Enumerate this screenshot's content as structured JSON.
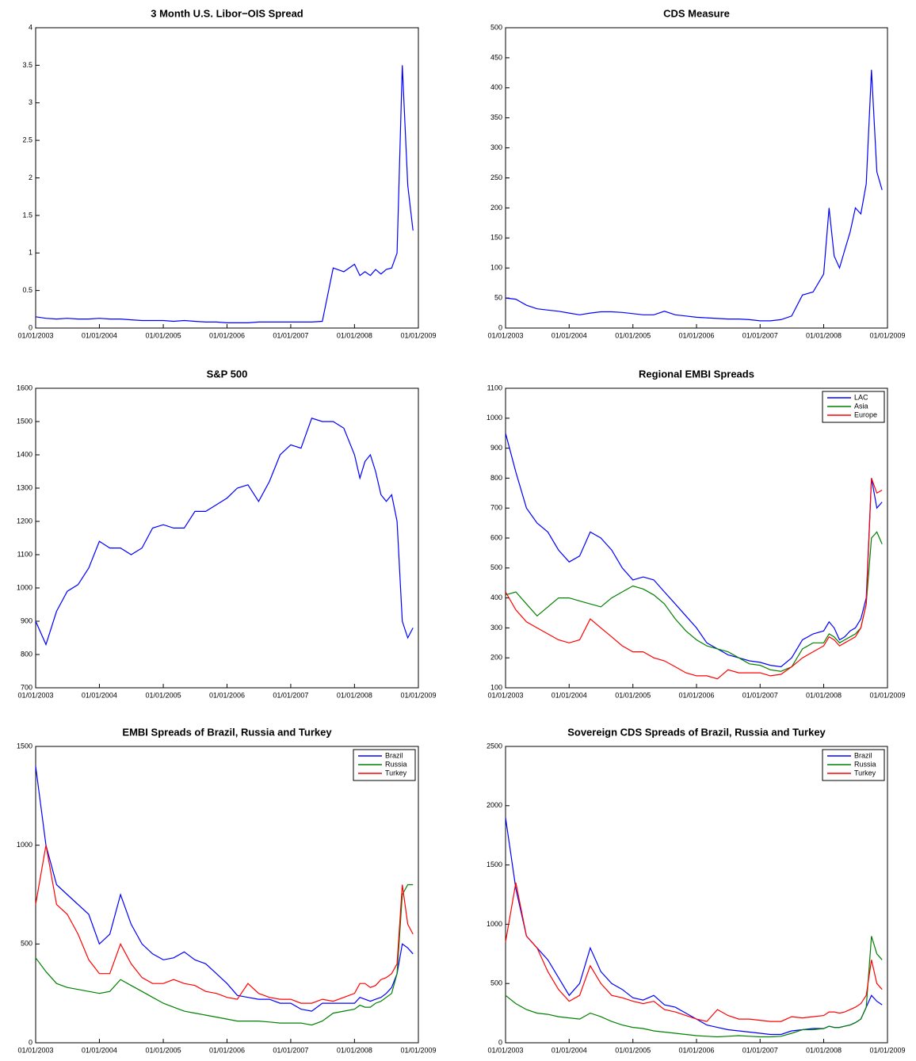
{
  "chart_data": [
    {
      "type": "line",
      "title": "3 Month U.S. Libor−OIS Spread",
      "x": [
        "01/01/2003",
        "03/01/2003",
        "05/01/2003",
        "07/01/2003",
        "09/01/2003",
        "11/01/2003",
        "01/01/2004",
        "03/01/2004",
        "05/01/2004",
        "07/01/2004",
        "09/01/2004",
        "11/01/2004",
        "01/01/2005",
        "03/01/2005",
        "05/01/2005",
        "07/01/2005",
        "09/01/2005",
        "11/01/2005",
        "01/01/2006",
        "03/01/2006",
        "05/01/2006",
        "07/01/2006",
        "09/01/2006",
        "11/01/2006",
        "01/01/2007",
        "03/01/2007",
        "05/01/2007",
        "07/01/2007",
        "09/01/2007",
        "11/01/2007",
        "01/01/2008",
        "02/01/2008",
        "03/01/2008",
        "04/01/2008",
        "05/01/2008",
        "06/01/2008",
        "07/01/2008",
        "08/01/2008",
        "09/01/2008",
        "10/01/2008",
        "11/01/2008",
        "12/01/2008"
      ],
      "values": [
        0.15,
        0.13,
        0.12,
        0.13,
        0.12,
        0.12,
        0.13,
        0.12,
        0.12,
        0.11,
        0.1,
        0.1,
        0.1,
        0.09,
        0.1,
        0.09,
        0.08,
        0.08,
        0.07,
        0.07,
        0.07,
        0.08,
        0.08,
        0.08,
        0.08,
        0.08,
        0.08,
        0.09,
        0.8,
        0.75,
        0.85,
        0.7,
        0.75,
        0.7,
        0.78,
        0.72,
        0.78,
        0.8,
        1.0,
        3.5,
        1.9,
        1.3
      ],
      "color": "#0000ff",
      "xlim": [
        "01/01/2003",
        "01/01/2009"
      ],
      "xticks": [
        "01/01/2003",
        "01/01/2004",
        "01/01/2005",
        "01/01/2006",
        "01/01/2007",
        "01/01/2008",
        "01/01/2009"
      ],
      "ylim": [
        0,
        4
      ],
      "yticks": [
        0,
        0.5,
        1,
        1.5,
        2,
        2.5,
        3,
        3.5,
        4
      ]
    },
    {
      "type": "line",
      "title": "CDS Measure",
      "x": [
        "01/01/2003",
        "03/01/2003",
        "05/01/2003",
        "07/01/2003",
        "09/01/2003",
        "11/01/2003",
        "01/01/2004",
        "03/01/2004",
        "05/01/2004",
        "07/01/2004",
        "09/01/2004",
        "11/01/2004",
        "01/01/2005",
        "03/01/2005",
        "05/01/2005",
        "07/01/2005",
        "09/01/2005",
        "11/01/2005",
        "01/01/2006",
        "03/01/2006",
        "05/01/2006",
        "07/01/2006",
        "09/01/2006",
        "11/01/2006",
        "01/01/2007",
        "03/01/2007",
        "05/01/2007",
        "07/01/2007",
        "09/01/2007",
        "11/01/2007",
        "01/01/2008",
        "02/01/2008",
        "03/01/2008",
        "04/01/2008",
        "05/01/2008",
        "06/01/2008",
        "07/01/2008",
        "08/01/2008",
        "09/01/2008",
        "10/01/2008",
        "11/01/2008",
        "12/01/2008"
      ],
      "values": [
        50,
        48,
        38,
        32,
        30,
        28,
        25,
        22,
        25,
        27,
        27,
        26,
        24,
        22,
        22,
        28,
        22,
        20,
        18,
        17,
        16,
        15,
        15,
        14,
        12,
        12,
        14,
        20,
        55,
        60,
        90,
        200,
        120,
        100,
        130,
        160,
        200,
        190,
        240,
        430,
        260,
        230
      ],
      "color": "#0000ff",
      "xlim": [
        "01/01/2003",
        "01/01/2009"
      ],
      "xticks": [
        "01/01/2003",
        "01/01/2004",
        "01/01/2005",
        "01/01/2006",
        "01/01/2007",
        "01/01/2008",
        "01/01/2009"
      ],
      "ylim": [
        0,
        500
      ],
      "yticks": [
        0,
        50,
        100,
        150,
        200,
        250,
        300,
        350,
        400,
        450,
        500
      ]
    },
    {
      "type": "line",
      "title": "S&P 500",
      "x": [
        "01/01/2003",
        "03/01/2003",
        "05/01/2003",
        "07/01/2003",
        "09/01/2003",
        "11/01/2003",
        "01/01/2004",
        "03/01/2004",
        "05/01/2004",
        "07/01/2004",
        "09/01/2004",
        "11/01/2004",
        "01/01/2005",
        "03/01/2005",
        "05/01/2005",
        "07/01/2005",
        "09/01/2005",
        "11/01/2005",
        "01/01/2006",
        "03/01/2006",
        "05/01/2006",
        "07/01/2006",
        "09/01/2006",
        "11/01/2006",
        "01/01/2007",
        "03/01/2007",
        "05/01/2007",
        "07/01/2007",
        "09/01/2007",
        "11/01/2007",
        "01/01/2008",
        "02/01/2008",
        "03/01/2008",
        "04/01/2008",
        "05/01/2008",
        "06/01/2008",
        "07/01/2008",
        "08/01/2008",
        "09/01/2008",
        "10/01/2008",
        "11/01/2008",
        "12/01/2008"
      ],
      "values": [
        900,
        830,
        930,
        990,
        1010,
        1060,
        1140,
        1120,
        1120,
        1100,
        1120,
        1180,
        1190,
        1180,
        1180,
        1230,
        1230,
        1250,
        1270,
        1300,
        1310,
        1260,
        1320,
        1400,
        1430,
        1420,
        1510,
        1500,
        1500,
        1480,
        1400,
        1330,
        1380,
        1400,
        1350,
        1280,
        1260,
        1280,
        1200,
        900,
        850,
        880
      ],
      "color": "#0000ff",
      "xlim": [
        "01/01/2003",
        "01/01/2009"
      ],
      "xticks": [
        "01/01/2003",
        "01/01/2004",
        "01/01/2005",
        "01/01/2006",
        "01/01/2007",
        "01/01/2008",
        "01/01/2009"
      ],
      "ylim": [
        700,
        1600
      ],
      "yticks": [
        700,
        800,
        900,
        1000,
        1100,
        1200,
        1300,
        1400,
        1500,
        1600
      ]
    },
    {
      "type": "line",
      "title": "Regional EMBI Spreads",
      "x": [
        "01/01/2003",
        "03/01/2003",
        "05/01/2003",
        "07/01/2003",
        "09/01/2003",
        "11/01/2003",
        "01/01/2004",
        "03/01/2004",
        "05/01/2004",
        "07/01/2004",
        "09/01/2004",
        "11/01/2004",
        "01/01/2005",
        "03/01/2005",
        "05/01/2005",
        "07/01/2005",
        "09/01/2005",
        "11/01/2005",
        "01/01/2006",
        "03/01/2006",
        "05/01/2006",
        "07/01/2006",
        "09/01/2006",
        "11/01/2006",
        "01/01/2007",
        "03/01/2007",
        "05/01/2007",
        "07/01/2007",
        "09/01/2007",
        "11/01/2007",
        "01/01/2008",
        "02/01/2008",
        "03/01/2008",
        "04/01/2008",
        "05/01/2008",
        "06/01/2008",
        "07/01/2008",
        "08/01/2008",
        "09/01/2008",
        "10/01/2008",
        "11/01/2008",
        "12/01/2008"
      ],
      "series": [
        {
          "name": "LAC",
          "color": "#0000ff",
          "values": [
            950,
            820,
            700,
            650,
            620,
            560,
            520,
            540,
            620,
            600,
            560,
            500,
            460,
            470,
            460,
            420,
            380,
            340,
            300,
            250,
            230,
            210,
            200,
            190,
            185,
            175,
            170,
            200,
            260,
            280,
            290,
            320,
            300,
            260,
            270,
            290,
            300,
            330,
            400,
            800,
            700,
            720
          ]
        },
        {
          "name": "Asia",
          "color": "#008000",
          "values": [
            410,
            420,
            380,
            340,
            370,
            400,
            400,
            390,
            380,
            370,
            400,
            420,
            440,
            430,
            410,
            380,
            330,
            290,
            260,
            240,
            230,
            220,
            200,
            180,
            175,
            160,
            155,
            170,
            230,
            250,
            250,
            280,
            270,
            250,
            260,
            270,
            280,
            300,
            380,
            600,
            620,
            580
          ]
        },
        {
          "name": "Europe",
          "color": "#ff0000",
          "values": [
            420,
            360,
            320,
            300,
            280,
            260,
            250,
            260,
            330,
            300,
            270,
            240,
            220,
            220,
            200,
            190,
            170,
            150,
            140,
            140,
            130,
            160,
            150,
            150,
            150,
            140,
            145,
            170,
            200,
            220,
            240,
            270,
            260,
            240,
            250,
            260,
            270,
            300,
            380,
            800,
            750,
            760
          ]
        }
      ],
      "legend": "upper right",
      "xlim": [
        "01/01/2003",
        "01/01/2009"
      ],
      "xticks": [
        "01/01/2003",
        "01/01/2004",
        "01/01/2005",
        "01/01/2006",
        "01/01/2007",
        "01/01/2008",
        "01/01/2009"
      ],
      "ylim": [
        100,
        1100
      ],
      "yticks": [
        100,
        200,
        300,
        400,
        500,
        600,
        700,
        800,
        900,
        1000,
        1100
      ]
    },
    {
      "type": "line",
      "title": "EMBI Spreads of Brazil, Russia and Turkey",
      "x": [
        "01/01/2003",
        "03/01/2003",
        "05/01/2003",
        "07/01/2003",
        "09/01/2003",
        "11/01/2003",
        "01/01/2004",
        "03/01/2004",
        "05/01/2004",
        "07/01/2004",
        "09/01/2004",
        "11/01/2004",
        "01/01/2005",
        "03/01/2005",
        "05/01/2005",
        "07/01/2005",
        "09/01/2005",
        "11/01/2005",
        "01/01/2006",
        "03/01/2006",
        "05/01/2006",
        "07/01/2006",
        "09/01/2006",
        "11/01/2006",
        "01/01/2007",
        "03/01/2007",
        "05/01/2007",
        "07/01/2007",
        "09/01/2007",
        "11/01/2007",
        "01/01/2008",
        "02/01/2008",
        "03/01/2008",
        "04/01/2008",
        "05/01/2008",
        "06/01/2008",
        "07/01/2008",
        "08/01/2008",
        "09/01/2008",
        "10/01/2008",
        "11/01/2008",
        "12/01/2008"
      ],
      "series": [
        {
          "name": "Brazil",
          "color": "#0000ff",
          "values": [
            1400,
            1000,
            800,
            750,
            700,
            650,
            500,
            550,
            750,
            600,
            500,
            450,
            420,
            430,
            460,
            420,
            400,
            350,
            300,
            240,
            230,
            220,
            220,
            200,
            200,
            170,
            160,
            200,
            200,
            200,
            200,
            230,
            220,
            210,
            220,
            230,
            250,
            280,
            350,
            500,
            480,
            450
          ]
        },
        {
          "name": "Russia",
          "color": "#008000",
          "values": [
            430,
            360,
            300,
            280,
            270,
            260,
            250,
            260,
            320,
            290,
            260,
            230,
            200,
            180,
            160,
            150,
            140,
            130,
            120,
            110,
            110,
            110,
            105,
            100,
            100,
            100,
            90,
            110,
            150,
            160,
            170,
            190,
            180,
            180,
            200,
            210,
            230,
            250,
            350,
            750,
            800,
            800
          ]
        },
        {
          "name": "Turkey",
          "color": "#ff0000",
          "values": [
            700,
            1000,
            700,
            650,
            550,
            420,
            350,
            350,
            500,
            400,
            330,
            300,
            300,
            320,
            300,
            290,
            260,
            250,
            230,
            220,
            300,
            250,
            230,
            220,
            220,
            200,
            200,
            220,
            210,
            230,
            250,
            300,
            300,
            280,
            290,
            320,
            330,
            350,
            400,
            800,
            600,
            550
          ]
        }
      ],
      "legend": "upper right",
      "xlim": [
        "01/01/2003",
        "01/01/2009"
      ],
      "xticks": [
        "01/01/2003",
        "01/01/2004",
        "01/01/2005",
        "01/01/2006",
        "01/01/2007",
        "01/01/2008",
        "01/01/2009"
      ],
      "ylim": [
        0,
        1500
      ],
      "yticks": [
        0,
        500,
        1000,
        1500
      ]
    },
    {
      "type": "line",
      "title": "Sovereign CDS Spreads of Brazil, Russia and Turkey",
      "x": [
        "01/01/2003",
        "03/01/2003",
        "05/01/2003",
        "07/01/2003",
        "09/01/2003",
        "11/01/2003",
        "01/01/2004",
        "03/01/2004",
        "05/01/2004",
        "07/01/2004",
        "09/01/2004",
        "11/01/2004",
        "01/01/2005",
        "03/01/2005",
        "05/01/2005",
        "07/01/2005",
        "09/01/2005",
        "11/01/2005",
        "01/01/2006",
        "03/01/2006",
        "05/01/2006",
        "07/01/2006",
        "09/01/2006",
        "11/01/2006",
        "01/01/2007",
        "03/01/2007",
        "05/01/2007",
        "07/01/2007",
        "09/01/2007",
        "11/01/2007",
        "01/01/2008",
        "02/01/2008",
        "03/01/2008",
        "04/01/2008",
        "05/01/2008",
        "06/01/2008",
        "07/01/2008",
        "08/01/2008",
        "09/01/2008",
        "10/01/2008",
        "11/01/2008",
        "12/01/2008"
      ],
      "series": [
        {
          "name": "Brazil",
          "color": "#0000ff",
          "values": [
            1900,
            1300,
            900,
            800,
            700,
            550,
            400,
            500,
            800,
            600,
            500,
            450,
            380,
            360,
            400,
            320,
            300,
            250,
            200,
            150,
            130,
            110,
            100,
            90,
            80,
            70,
            70,
            100,
            110,
            120,
            120,
            140,
            130,
            130,
            140,
            150,
            170,
            200,
            300,
            400,
            350,
            320
          ]
        },
        {
          "name": "Russia",
          "color": "#008000",
          "values": [
            400,
            330,
            280,
            250,
            240,
            220,
            210,
            200,
            250,
            220,
            180,
            150,
            130,
            120,
            100,
            90,
            80,
            70,
            60,
            55,
            50,
            55,
            60,
            55,
            50,
            50,
            55,
            80,
            110,
            110,
            120,
            140,
            130,
            130,
            140,
            150,
            170,
            200,
            300,
            900,
            750,
            700
          ]
        },
        {
          "name": "Turkey",
          "color": "#ff0000",
          "values": [
            850,
            1350,
            900,
            800,
            600,
            450,
            350,
            400,
            650,
            500,
            400,
            380,
            350,
            330,
            350,
            280,
            260,
            230,
            200,
            180,
            280,
            230,
            200,
            200,
            190,
            180,
            180,
            220,
            210,
            220,
            230,
            260,
            260,
            250,
            260,
            280,
            300,
            330,
            400,
            700,
            500,
            450
          ]
        }
      ],
      "legend": "upper right",
      "xlim": [
        "01/01/2003",
        "01/01/2009"
      ],
      "xticks": [
        "01/01/2003",
        "01/01/2004",
        "01/01/2005",
        "01/01/2006",
        "01/01/2007",
        "01/01/2008",
        "01/01/2009"
      ],
      "ylim": [
        0,
        2500
      ],
      "yticks": [
        0,
        500,
        1000,
        1500,
        2000,
        2500
      ]
    }
  ]
}
